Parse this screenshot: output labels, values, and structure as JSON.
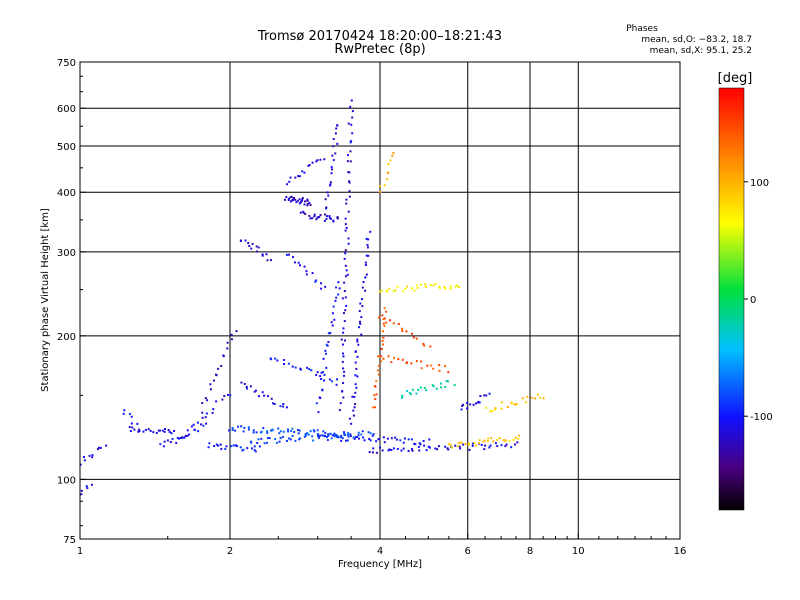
{
  "chart_data": {
    "type": "scatter",
    "title": "Tromsø 20170424 18:20:00–18:21:43",
    "subtitle": "RwPretec (8p)",
    "xlabel": "Frequency [MHz]",
    "ylabel": "Stationary phase Virtual Height [km]",
    "x_scale": "log",
    "y_scale": "log",
    "xlim": [
      1,
      16
    ],
    "ylim": [
      75,
      750
    ],
    "x_ticks": [
      1,
      2,
      4,
      6,
      8,
      10,
      16
    ],
    "y_ticks": [
      75,
      100,
      200,
      300,
      400,
      500,
      600,
      750
    ],
    "x_gridlines": [
      2,
      4,
      6,
      8,
      10
    ],
    "y_gridlines": [
      100,
      200,
      300,
      400,
      500,
      600
    ],
    "grid": true,
    "stats": {
      "heading": "Phases",
      "line_o": "mean, sd,O: −83.2, 18.7",
      "line_x": "mean, sd,X:  95.1, 25.2"
    },
    "colorbar": {
      "label": "[deg]",
      "min": -180,
      "max": 180,
      "ticks": [
        -100,
        0,
        100
      ],
      "colormap": "rainbow"
    },
    "series": [
      {
        "traces": [
          {
            "x0": 1.0,
            "x1": 1.12,
            "y0": 108,
            "y1": 118,
            "phase": -110,
            "n": 10
          },
          {
            "x0": 1.0,
            "x1": 1.05,
            "y0": 94,
            "y1": 98,
            "phase": -115,
            "n": 5
          },
          {
            "x0": 1.25,
            "x1": 1.55,
            "y0": 128,
            "y1": 125,
            "phase": -110,
            "n": 22
          },
          {
            "x0": 1.22,
            "x1": 1.3,
            "y0": 140,
            "y1": 130,
            "phase": -105,
            "n": 6
          },
          {
            "x0": 1.45,
            "x1": 1.8,
            "y0": 118,
            "y1": 130,
            "phase": -105,
            "n": 18
          },
          {
            "x0": 1.55,
            "x1": 2.0,
            "y0": 120,
            "y1": 152,
            "phase": -110,
            "n": 18
          },
          {
            "x0": 1.75,
            "x1": 2.05,
            "y0": 140,
            "y1": 205,
            "phase": -120,
            "n": 18
          },
          {
            "x0": 1.8,
            "x1": 2.3,
            "y0": 118,
            "y1": 116,
            "phase": -100,
            "n": 22
          },
          {
            "x0": 2.0,
            "x1": 3.5,
            "y0": 128,
            "y1": 124,
            "phase": -80,
            "n": 55
          },
          {
            "x0": 2.2,
            "x1": 3.9,
            "y0": 120,
            "y1": 125,
            "phase": -85,
            "n": 50
          },
          {
            "x0": 3.0,
            "x1": 5.0,
            "y0": 123,
            "y1": 120,
            "phase": -100,
            "n": 40
          },
          {
            "x0": 3.8,
            "x1": 7.5,
            "y0": 115,
            "y1": 118,
            "phase": -110,
            "n": 50
          },
          {
            "x0": 5.5,
            "x1": 7.6,
            "y0": 118,
            "y1": 122,
            "phase": 90,
            "n": 30
          },
          {
            "x0": 2.1,
            "x1": 2.6,
            "y0": 160,
            "y1": 140,
            "phase": -105,
            "n": 18
          },
          {
            "x0": 2.4,
            "x1": 3.3,
            "y0": 180,
            "y1": 160,
            "phase": -100,
            "n": 22
          },
          {
            "x0": 2.6,
            "x1": 2.9,
            "y0": 390,
            "y1": 380,
            "phase": -120,
            "n": 30
          },
          {
            "x0": 2.8,
            "x1": 3.3,
            "y0": 360,
            "y1": 350,
            "phase": -120,
            "n": 25
          },
          {
            "x0": 2.6,
            "x1": 3.1,
            "y0": 420,
            "y1": 470,
            "phase": -110,
            "n": 15
          },
          {
            "x0": 3.1,
            "x1": 3.3,
            "y0": 360,
            "y1": 560,
            "phase": -115,
            "n": 22
          },
          {
            "x0": 3.35,
            "x1": 3.5,
            "y0": 140,
            "y1": 620,
            "phase": -115,
            "n": 60
          },
          {
            "x0": 3.0,
            "x1": 3.3,
            "y0": 140,
            "y1": 260,
            "phase": -100,
            "n": 30
          },
          {
            "x0": 3.5,
            "x1": 3.8,
            "y0": 130,
            "y1": 330,
            "phase": -110,
            "n": 45
          },
          {
            "x0": 2.1,
            "x1": 2.4,
            "y0": 320,
            "y1": 290,
            "phase": -120,
            "n": 15
          },
          {
            "x0": 2.6,
            "x1": 3.1,
            "y0": 300,
            "y1": 250,
            "phase": -100,
            "n": 15
          },
          {
            "x0": 3.9,
            "x1": 4.1,
            "y0": 140,
            "y1": 230,
            "phase": 140,
            "n": 25
          },
          {
            "x0": 4.0,
            "x1": 5.8,
            "y0": 250,
            "y1": 255,
            "phase": 70,
            "n": 30
          },
          {
            "x0": 4.0,
            "x1": 5.5,
            "y0": 180,
            "y1": 170,
            "phase": 140,
            "n": 20
          },
          {
            "x0": 4.4,
            "x1": 5.6,
            "y0": 150,
            "y1": 160,
            "phase": -20,
            "n": 20
          },
          {
            "x0": 5.8,
            "x1": 6.6,
            "y0": 140,
            "y1": 150,
            "phase": -110,
            "n": 15
          },
          {
            "x0": 6.5,
            "x1": 8.5,
            "y0": 140,
            "y1": 150,
            "phase": 90,
            "n": 20
          },
          {
            "x0": 4.0,
            "x1": 4.3,
            "y0": 400,
            "y1": 480,
            "phase": 100,
            "n": 10
          },
          {
            "x0": 4.0,
            "x1": 5.0,
            "y0": 220,
            "y1": 190,
            "phase": 150,
            "n": 15
          }
        ]
      }
    ]
  }
}
